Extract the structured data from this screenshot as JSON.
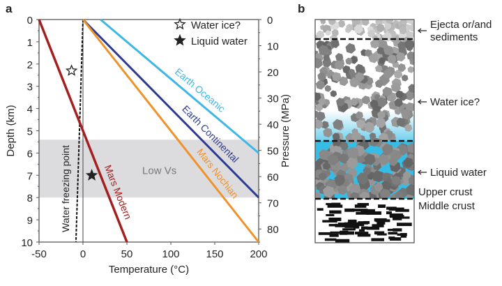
{
  "chart_data": [
    {
      "type": "line",
      "panel_label": "a",
      "xlabel": "Temperature (°C)",
      "ylabel": "Depth (km)",
      "y2label": "Pressure (MPa)",
      "xlim": [
        -50,
        200
      ],
      "ylim": [
        0,
        10
      ],
      "y2lim": [
        0,
        85
      ],
      "xticks": [
        -50,
        0,
        50,
        100,
        150,
        200
      ],
      "yticks": [
        0,
        1,
        2,
        3,
        4,
        5,
        6,
        7,
        8,
        9,
        10
      ],
      "y2ticks": [
        0,
        10,
        20,
        30,
        40,
        50,
        60,
        70,
        80
      ],
      "grid": false,
      "series": [
        {
          "name": "Earth Oceanic",
          "color": "#3db8e6",
          "x": [
            20,
            200
          ],
          "y": [
            0,
            6.0
          ]
        },
        {
          "name": "Earth Continental",
          "color": "#2e3a8f",
          "x": [
            0,
            200
          ],
          "y": [
            0,
            8.0
          ]
        },
        {
          "name": "Mars Nochian",
          "color": "#f0922a",
          "x": [
            0,
            200
          ],
          "y": [
            0,
            10
          ]
        },
        {
          "name": "Mars Modern",
          "color": "#a3201f",
          "x": [
            -50,
            50
          ],
          "y": [
            0,
            10
          ]
        }
      ],
      "freezing_line": {
        "name": "Water freezing point",
        "x": [
          0,
          -8
        ],
        "y": [
          0,
          10
        ]
      },
      "band": {
        "name": "Low Vs",
        "ymin": 5.4,
        "ymax": 8.0,
        "color": "#dcdcdf"
      },
      "markers": [
        {
          "name": "Water ice?",
          "symbol": "open-star",
          "x": -13,
          "y": 2.3
        },
        {
          "name": "Liquid water",
          "symbol": "filled-star",
          "x": 10,
          "y": 7.0
        }
      ],
      "legend": {
        "placement": "top-right",
        "entries": [
          "Water ice?",
          "Liquid water"
        ]
      }
    },
    {
      "type": "diagram",
      "panel_label": "b",
      "layers": [
        {
          "label": "Ejecta or/and sediments"
        },
        {
          "label": "Water ice?"
        },
        {
          "label": "Liquid water"
        },
        {
          "label": "Upper crust"
        },
        {
          "label": "Middle crust"
        }
      ]
    }
  ]
}
